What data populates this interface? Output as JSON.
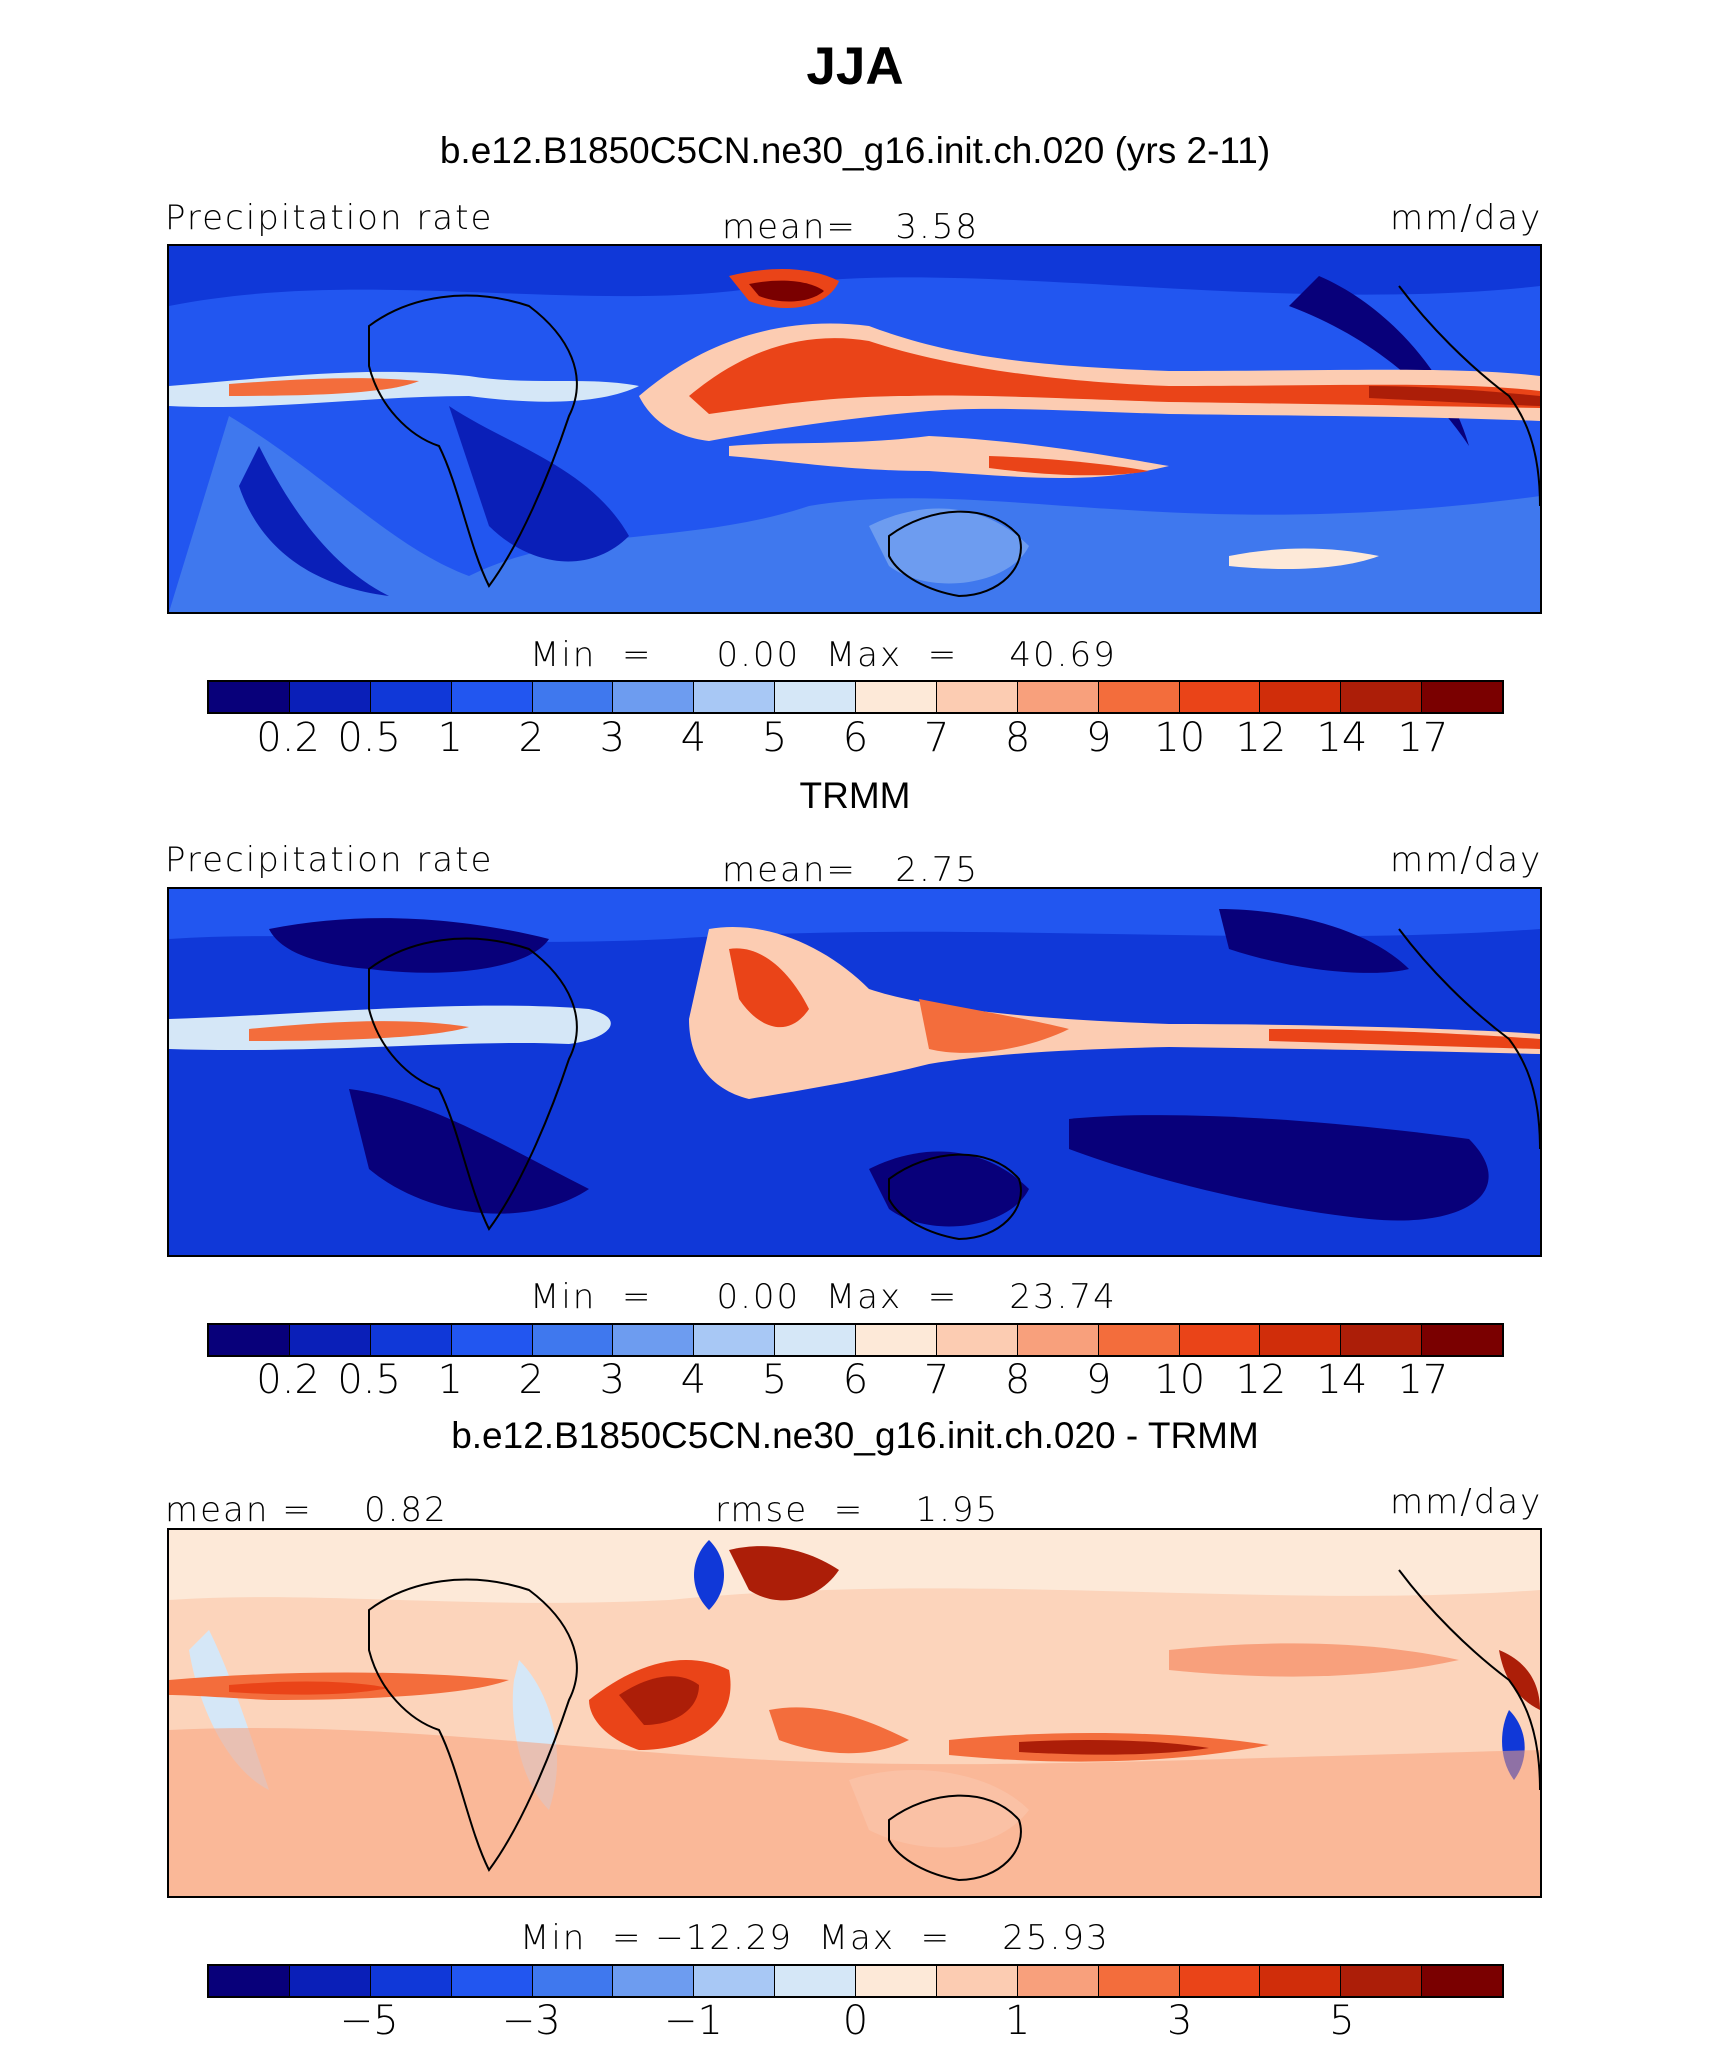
{
  "title": "JJA",
  "colors": {
    "scale": [
      "#08007a",
      "#0a1fb8",
      "#1038d8",
      "#2256f0",
      "#3f78ee",
      "#6d9cf0",
      "#a8c8f5",
      "#d5e7f7",
      "#fde9d8",
      "#fcccb2",
      "#f8a07c",
      "#f36d3c",
      "#ea4418",
      "#d02d0a",
      "#ac1e08",
      "#7a0000"
    ],
    "background_pos": "#f4a27e",
    "background_neg": "#2256f0",
    "background_diff": "#fcd4bb"
  },
  "panels": [
    {
      "subtitle": "b.e12.B1850C5CN.ne30_g16.init.ch.020 (yrs 2-11)",
      "left_label": "Precipitation rate",
      "center_label": "mean=   3.58",
      "right_label": "mm/day",
      "minmax": "Min  =     0.00  Max  =    40.69",
      "colorbar_labels": [
        "0.2",
        "0.5",
        "1",
        "2",
        "3",
        "4",
        "5",
        "6",
        "7",
        "8",
        "9",
        "10",
        "12",
        "14",
        "17"
      ]
    },
    {
      "subtitle": "TRMM",
      "left_label": "Precipitation rate",
      "center_label": "mean=   2.75",
      "right_label": "mm/day",
      "minmax": "Min  =     0.00  Max  =    23.74",
      "colorbar_labels": [
        "0.2",
        "0.5",
        "1",
        "2",
        "3",
        "4",
        "5",
        "6",
        "7",
        "8",
        "9",
        "10",
        "12",
        "14",
        "17"
      ]
    },
    {
      "subtitle": "b.e12.B1850C5CN.ne30_g16.init.ch.020 - TRMM",
      "left_label": "mean =    0.82",
      "center_label": "rmse  =    1.95",
      "right_label": "mm/day",
      "minmax": "Min  = −12.29  Max  =    25.93",
      "colorbar_labels": [
        "−5",
        "−3",
        "−1",
        "0",
        "1",
        "3",
        "5"
      ]
    }
  ]
}
